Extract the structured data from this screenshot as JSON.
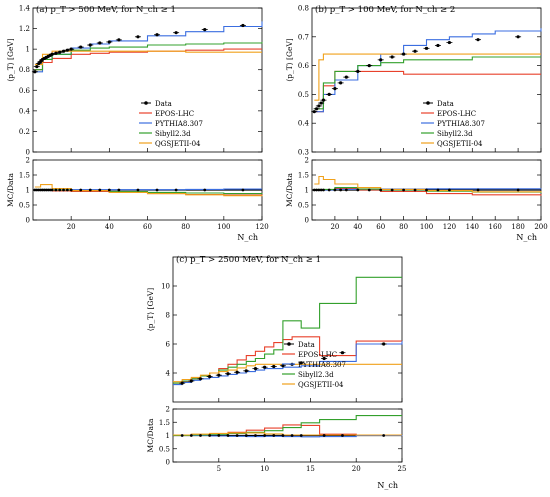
{
  "colors": {
    "Data": "#000000",
    "EPOS-LHC": "#e8412b",
    "PYTHIA8.307": "#3b6ee0",
    "Sibyll2.3d": "#33a02c",
    "QGSJETII-04": "#f0a11b"
  },
  "chart_data": [
    {
      "type": "line",
      "panel": "a",
      "title": "(a) p_T > 500 MeV, for N_ch ≥ 1",
      "ylabel": "⟨p_T⟩  [GeV]",
      "ratio_ylabel": "MC/Data",
      "xlabel": "N_ch",
      "xlim": [
        0,
        120
      ],
      "ylim": [
        0,
        1.4
      ],
      "ratio_ylim": [
        0,
        2
      ],
      "xticks": [
        "20",
        "40",
        "60",
        "80",
        "100",
        "120"
      ],
      "yticks": [
        "0",
        "0.2",
        "0.4",
        "0.6",
        "0.8",
        "1",
        "1.2",
        "1.4"
      ],
      "ratio_yticks": [
        "0",
        "0.5",
        "1",
        "1.5",
        "2"
      ],
      "legend_position": "center-left",
      "legend": [
        "Data",
        "EPOS-LHC",
        "PYTHIA8.307",
        "Sibyll2.3d",
        "QGSJETII-04"
      ],
      "data": {
        "x": [
          1,
          2,
          3,
          4,
          5,
          6,
          7,
          8,
          9,
          10,
          12,
          14,
          16,
          18,
          20,
          25,
          30,
          35,
          40,
          45,
          55,
          65,
          75,
          90,
          110
        ],
        "y": [
          0.78,
          0.83,
          0.86,
          0.88,
          0.9,
          0.91,
          0.92,
          0.93,
          0.94,
          0.95,
          0.96,
          0.97,
          0.98,
          0.99,
          1.0,
          1.02,
          1.04,
          1.06,
          1.07,
          1.09,
          1.12,
          1.14,
          1.16,
          1.19,
          1.23
        ]
      },
      "series": [
        {
          "name": "EPOS-LHC",
          "x": [
            1,
            5,
            10,
            20,
            30,
            40,
            60,
            80,
            100,
            120
          ],
          "y": [
            0.8,
            0.87,
            0.91,
            0.95,
            0.96,
            0.97,
            0.98,
            0.99,
            1.0,
            1.0
          ]
        },
        {
          "name": "PYTHIA8.307",
          "x": [
            1,
            5,
            10,
            20,
            30,
            40,
            60,
            80,
            100,
            120
          ],
          "y": [
            0.78,
            0.9,
            0.95,
            1.01,
            1.05,
            1.08,
            1.13,
            1.17,
            1.22,
            1.27
          ]
        },
        {
          "name": "Sibyll2.3d",
          "x": [
            1,
            5,
            10,
            20,
            30,
            40,
            60,
            80,
            100,
            120
          ],
          "y": [
            0.8,
            0.9,
            0.95,
            0.99,
            1.01,
            1.02,
            1.04,
            1.05,
            1.06,
            1.07
          ]
        },
        {
          "name": "QGSJETII-04",
          "x": [
            1,
            5,
            10,
            20,
            30,
            40,
            60,
            80,
            100,
            120
          ],
          "y": [
            0.85,
            0.95,
            0.98,
            0.98,
            0.98,
            0.98,
            0.98,
            0.97,
            0.97,
            0.97
          ]
        }
      ],
      "ratio_series": [
        {
          "name": "EPOS-LHC",
          "x": [
            1,
            10,
            20,
            40,
            60,
            80,
            100,
            120
          ],
          "y": [
            1.0,
            0.97,
            0.95,
            0.92,
            0.88,
            0.85,
            0.83,
            0.81
          ]
        },
        {
          "name": "PYTHIA8.307",
          "x": [
            1,
            10,
            20,
            40,
            60,
            80,
            100,
            120
          ],
          "y": [
            1.0,
            1.0,
            1.01,
            1.01,
            1.01,
            1.02,
            1.03,
            1.03
          ]
        },
        {
          "name": "Sibyll2.3d",
          "x": [
            1,
            10,
            20,
            40,
            60,
            80,
            100,
            120
          ],
          "y": [
            1.02,
            1.0,
            0.98,
            0.95,
            0.92,
            0.9,
            0.88,
            0.87
          ]
        },
        {
          "name": "QGSJETII-04",
          "x": [
            1,
            4,
            10,
            20,
            40,
            60,
            80,
            100,
            120
          ],
          "y": [
            1.1,
            1.18,
            1.05,
            0.98,
            0.92,
            0.88,
            0.84,
            0.81,
            0.79
          ]
        }
      ]
    },
    {
      "type": "line",
      "panel": "b",
      "title": "(b) p_T > 100 MeV, for N_ch ≥ 2",
      "ylabel": "⟨p_T⟩  [GeV]",
      "ratio_ylabel": "MC/Data",
      "xlabel": "N_ch",
      "xlim": [
        0,
        200
      ],
      "ylim": [
        0.3,
        0.8
      ],
      "ratio_ylim": [
        0,
        2
      ],
      "xticks": [
        "20",
        "40",
        "60",
        "80",
        "100",
        "120",
        "140",
        "160",
        "180",
        "200"
      ],
      "yticks": [
        "0.3",
        "0.4",
        "0.5",
        "0.6",
        "0.7",
        "0.8"
      ],
      "ratio_yticks": [
        "0",
        "0.5",
        "1",
        "1.5",
        "2"
      ],
      "legend_position": "center-right",
      "legend": [
        "Data",
        "EPOS-LHC",
        "PYTHIA8.307",
        "Sibyll2.3d",
        "QGSJETII-04"
      ],
      "data": {
        "x": [
          2,
          4,
          6,
          8,
          10,
          15,
          20,
          25,
          30,
          40,
          50,
          60,
          70,
          80,
          90,
          100,
          110,
          120,
          145,
          180
        ],
        "y": [
          0.44,
          0.45,
          0.46,
          0.47,
          0.48,
          0.5,
          0.52,
          0.54,
          0.56,
          0.58,
          0.6,
          0.62,
          0.63,
          0.64,
          0.65,
          0.66,
          0.67,
          0.68,
          0.69,
          0.7
        ]
      },
      "series": [
        {
          "name": "EPOS-LHC",
          "x": [
            2,
            10,
            20,
            40,
            60,
            80,
            100,
            140,
            200
          ],
          "y": [
            0.44,
            0.53,
            0.58,
            0.58,
            0.58,
            0.57,
            0.57,
            0.57,
            0.57
          ]
        },
        {
          "name": "PYTHIA8.307",
          "x": [
            2,
            10,
            20,
            40,
            60,
            80,
            100,
            120,
            140,
            160,
            200
          ],
          "y": [
            0.44,
            0.5,
            0.55,
            0.6,
            0.64,
            0.67,
            0.69,
            0.7,
            0.71,
            0.72,
            0.73
          ]
        },
        {
          "name": "Sibyll2.3d",
          "x": [
            2,
            10,
            20,
            40,
            60,
            80,
            100,
            140,
            200
          ],
          "y": [
            0.45,
            0.54,
            0.58,
            0.6,
            0.61,
            0.62,
            0.62,
            0.63,
            0.63
          ]
        },
        {
          "name": "QGSJETII-04",
          "x": [
            2,
            6,
            10,
            20,
            40,
            60,
            100,
            140,
            200
          ],
          "y": [
            0.48,
            0.62,
            0.64,
            0.64,
            0.64,
            0.64,
            0.64,
            0.64,
            0.64
          ]
        }
      ],
      "ratio_series": [
        {
          "name": "EPOS-LHC",
          "x": [
            2,
            20,
            40,
            60,
            100,
            140,
            200
          ],
          "y": [
            1.0,
            1.05,
            1.0,
            0.95,
            0.88,
            0.84,
            0.81
          ]
        },
        {
          "name": "PYTHIA8.307",
          "x": [
            2,
            20,
            40,
            60,
            100,
            140,
            200
          ],
          "y": [
            1.0,
            1.02,
            1.03,
            1.03,
            1.04,
            1.04,
            1.05
          ]
        },
        {
          "name": "Sibyll2.3d",
          "x": [
            2,
            20,
            40,
            60,
            100,
            140,
            200
          ],
          "y": [
            1.02,
            1.08,
            1.03,
            1.0,
            0.96,
            0.93,
            0.9
          ]
        },
        {
          "name": "QGSJETII-04",
          "x": [
            2,
            6,
            10,
            20,
            40,
            60,
            100,
            140,
            200
          ],
          "y": [
            1.2,
            1.45,
            1.35,
            1.2,
            1.08,
            1.02,
            0.98,
            0.94,
            0.92
          ]
        }
      ]
    },
    {
      "type": "line",
      "panel": "c",
      "title": "(c) p_T > 2500 MeV, for N_ch ≥ 1",
      "ylabel": "⟨p_T⟩  [GeV]",
      "ratio_ylabel": "MC/Data",
      "xlabel": "N_ch",
      "xlim": [
        0,
        25
      ],
      "ylim": [
        2,
        12
      ],
      "ratio_ylim": [
        0,
        2
      ],
      "xticks": [
        "5",
        "10",
        "15",
        "20",
        "25"
      ],
      "yticks": [
        "4",
        "6",
        "8",
        "10"
      ],
      "ratio_yticks": [
        "0",
        "0.5",
        "1",
        "1.5",
        "2"
      ],
      "legend_position": "center-right",
      "legend": [
        "Data",
        "EPOS-LHC",
        "PYTHIA8.307",
        "Sibyll2.3d",
        "QGSJETII-04"
      ],
      "data": {
        "x": [
          1,
          2,
          3,
          4,
          5,
          6,
          7,
          8,
          9,
          10,
          11,
          12,
          13,
          14,
          16.5,
          18.5,
          23
        ],
        "y": [
          3.3,
          3.45,
          3.6,
          3.75,
          3.85,
          3.95,
          4.05,
          4.15,
          4.3,
          4.4,
          4.45,
          4.5,
          4.6,
          4.7,
          5.0,
          5.4,
          6.0
        ]
      },
      "series": [
        {
          "name": "EPOS-LHC",
          "x": [
            0,
            1,
            2,
            3,
            4,
            5,
            6,
            7,
            8,
            9,
            10,
            11,
            12,
            13,
            14,
            16,
            20,
            25
          ],
          "y": [
            3.3,
            3.4,
            3.6,
            3.8,
            4.0,
            4.3,
            4.6,
            4.9,
            5.2,
            5.5,
            5.8,
            6.1,
            6.3,
            6.5,
            6.5,
            5.2,
            6.2,
            6.2
          ]
        },
        {
          "name": "PYTHIA8.307",
          "x": [
            0,
            1,
            2,
            3,
            4,
            5,
            6,
            7,
            8,
            9,
            10,
            12,
            14,
            16,
            20,
            25
          ],
          "y": [
            3.2,
            3.35,
            3.5,
            3.6,
            3.7,
            3.8,
            3.9,
            4.0,
            4.1,
            4.2,
            4.3,
            4.4,
            4.5,
            4.8,
            6.0,
            6.2
          ]
        },
        {
          "name": "Sibyll2.3d",
          "x": [
            0,
            1,
            2,
            3,
            4,
            5,
            6,
            7,
            8,
            9,
            10,
            11,
            12,
            14,
            16,
            20,
            25
          ],
          "y": [
            3.3,
            3.45,
            3.6,
            3.8,
            4.0,
            4.2,
            4.4,
            4.6,
            4.8,
            5.0,
            5.3,
            5.6,
            7.6,
            7.1,
            8.8,
            10.6,
            10.6
          ]
        },
        {
          "name": "QGSJETII-04",
          "x": [
            0,
            1,
            2,
            3,
            4,
            5,
            6,
            7,
            8,
            9,
            10,
            12,
            13
          ],
          "y": [
            3.4,
            3.55,
            3.7,
            3.85,
            4.0,
            4.1,
            4.2,
            4.35,
            4.5,
            4.6,
            4.6,
            4.6,
            4.6
          ]
        }
      ],
      "ratio_series": [
        {
          "name": "EPOS-LHC",
          "x": [
            0,
            2,
            4,
            6,
            8,
            10,
            12,
            14,
            16,
            20,
            25
          ],
          "y": [
            1.0,
            1.04,
            1.07,
            1.12,
            1.2,
            1.28,
            1.4,
            1.38,
            1.05,
            1.0,
            1.0
          ]
        },
        {
          "name": "PYTHIA8.307",
          "x": [
            0,
            2,
            4,
            6,
            8,
            10,
            12,
            14,
            16,
            20,
            25
          ],
          "y": [
            1.0,
            1.0,
            0.98,
            0.97,
            0.96,
            0.97,
            0.96,
            0.95,
            0.96,
            1.0,
            1.02
          ]
        },
        {
          "name": "Sibyll2.3d",
          "x": [
            0,
            2,
            4,
            6,
            8,
            10,
            12,
            14,
            16,
            20,
            25
          ],
          "y": [
            1.0,
            1.02,
            1.05,
            1.08,
            1.12,
            1.18,
            1.3,
            1.48,
            1.6,
            1.75,
            1.75
          ]
        },
        {
          "name": "QGSJETII-04",
          "x": [
            0,
            2,
            4,
            6,
            8,
            10,
            12,
            13
          ],
          "y": [
            1.02,
            1.05,
            1.08,
            1.1,
            1.1,
            1.06,
            1.02,
            1.02
          ]
        }
      ]
    }
  ]
}
